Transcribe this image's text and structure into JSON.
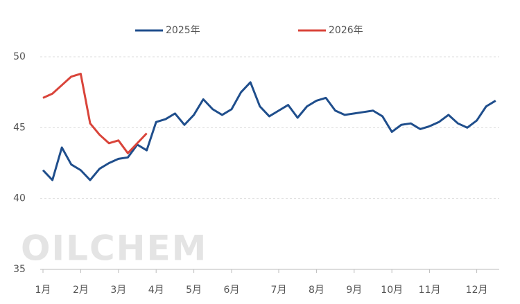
{
  "chart_data": {
    "type": "line",
    "categories": [
      "1月",
      null,
      null,
      null,
      "2月",
      null,
      null,
      null,
      "3月",
      null,
      null,
      null,
      "4月",
      null,
      null,
      null,
      "5月",
      null,
      null,
      null,
      "6月",
      null,
      null,
      null,
      null,
      "7月",
      null,
      null,
      null,
      "8月",
      null,
      null,
      null,
      "9月",
      null,
      null,
      null,
      "10月",
      null,
      null,
      null,
      "11月",
      null,
      null,
      null,
      null,
      "12月",
      null,
      null
    ],
    "series": [
      {
        "name": "2025年",
        "color": "#1f4e8c",
        "values": [
          42.0,
          41.3,
          43.6,
          42.4,
          42.0,
          41.3,
          42.1,
          42.5,
          42.8,
          42.9,
          43.8,
          43.4,
          45.4,
          45.6,
          46.0,
          45.2,
          45.9,
          47.0,
          46.3,
          45.9,
          46.3,
          47.5,
          48.2,
          46.5,
          45.8,
          46.2,
          46.6,
          45.7,
          46.5,
          46.9,
          47.1,
          46.2,
          45.9,
          46.0,
          46.1,
          46.2,
          45.8,
          44.7,
          45.2,
          45.3,
          44.9,
          45.1,
          45.4,
          45.9,
          45.3,
          45.0,
          45.5,
          46.5,
          46.9
        ]
      },
      {
        "name": "2026年",
        "color": "#d9443a",
        "values": [
          47.1,
          47.4,
          48.0,
          48.6,
          48.8,
          45.3,
          44.5,
          43.9,
          44.1,
          43.2,
          43.9,
          44.6,
          null,
          null,
          null,
          null,
          null,
          null,
          null,
          null,
          null,
          null,
          null,
          null,
          null,
          null,
          null,
          null,
          null,
          null,
          null,
          null,
          null,
          null,
          null,
          null,
          null,
          null,
          null,
          null,
          null,
          null,
          null,
          null,
          null,
          null,
          null,
          null,
          null
        ]
      }
    ],
    "ylim": [
      35,
      50
    ],
    "yticks": [
      35,
      40,
      45,
      50
    ],
    "grid": true,
    "legend": "top",
    "watermark": "OILCHEM"
  }
}
